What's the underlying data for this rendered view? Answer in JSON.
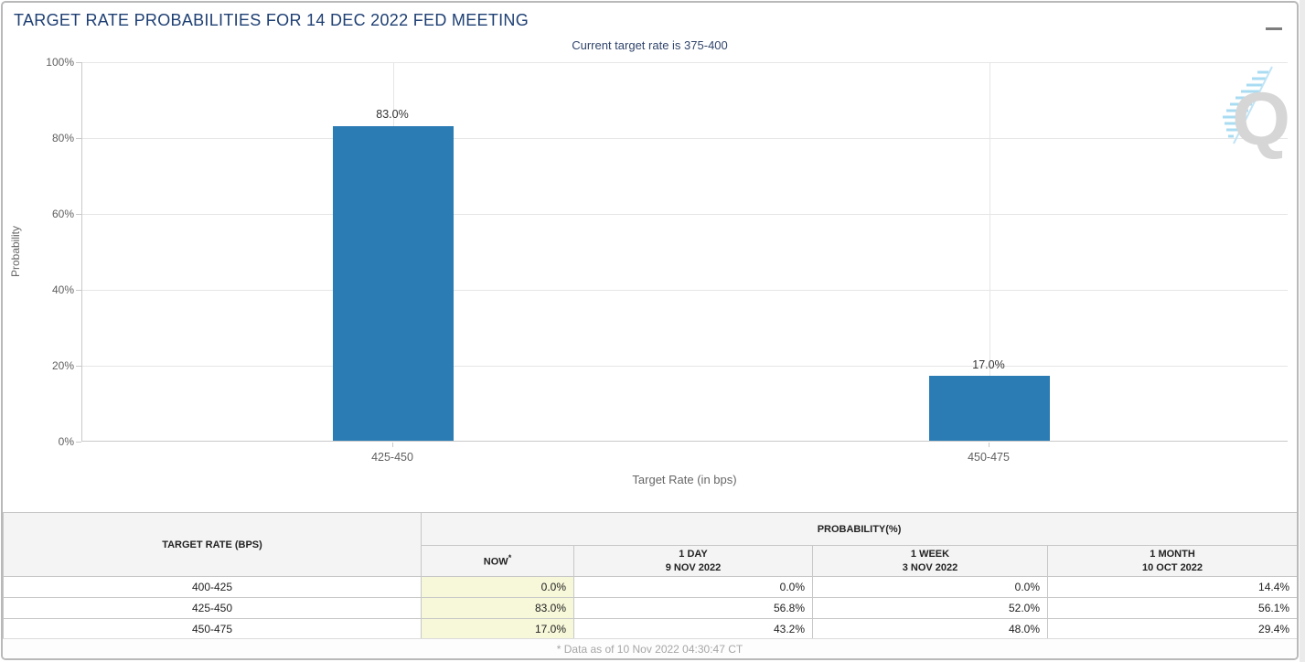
{
  "header": {
    "title": "TARGET RATE PROBABILITIES FOR 14 DEC 2022 FED MEETING"
  },
  "chart": {
    "subtitle": "Current target rate is 375-400",
    "y_axis_title": "Probability",
    "x_axis_title": "Target Rate (in bps)",
    "y_ticks": [
      "100%",
      "80%",
      "60%",
      "40%",
      "20%",
      "0%"
    ],
    "bar_labels": [
      "83.0%",
      "17.0%"
    ],
    "watermark_letter": "Q"
  },
  "chart_data": {
    "type": "bar",
    "title": "Target Rate Probabilities for 14 Dec 2022 Fed Meeting",
    "subtitle": "Current target rate is 375-400",
    "categories": [
      "425-450",
      "450-475"
    ],
    "values": [
      83.0,
      17.0
    ],
    "xlabel": "Target Rate (in bps)",
    "ylabel": "Probability",
    "ylim": [
      0,
      100
    ],
    "y_tick_step": 20,
    "grid": true,
    "legend": false,
    "bar_color": "#2b7cb5"
  },
  "table": {
    "col1_header": "TARGET RATE (BPS)",
    "group_header": "PROBABILITY(%)",
    "sub_headers": [
      {
        "line1": "NOW",
        "sup": "*",
        "line2": ""
      },
      {
        "line1": "1 DAY",
        "line2": "9 NOV 2022"
      },
      {
        "line1": "1 WEEK",
        "line2": "3 NOV 2022"
      },
      {
        "line1": "1 MONTH",
        "line2": "10 OCT 2022"
      }
    ],
    "rows": [
      {
        "rate": "400-425",
        "now": "0.0%",
        "day": "0.0%",
        "week": "0.0%",
        "month": "14.4%"
      },
      {
        "rate": "425-450",
        "now": "83.0%",
        "day": "56.8%",
        "week": "52.0%",
        "month": "56.1%"
      },
      {
        "rate": "450-475",
        "now": "17.0%",
        "day": "43.2%",
        "week": "48.0%",
        "month": "29.4%"
      }
    ],
    "now_highlight_color": "#f7f7d9"
  },
  "footer": {
    "note": "* Data as of 10 Nov 2022 04:30:47 CT"
  }
}
